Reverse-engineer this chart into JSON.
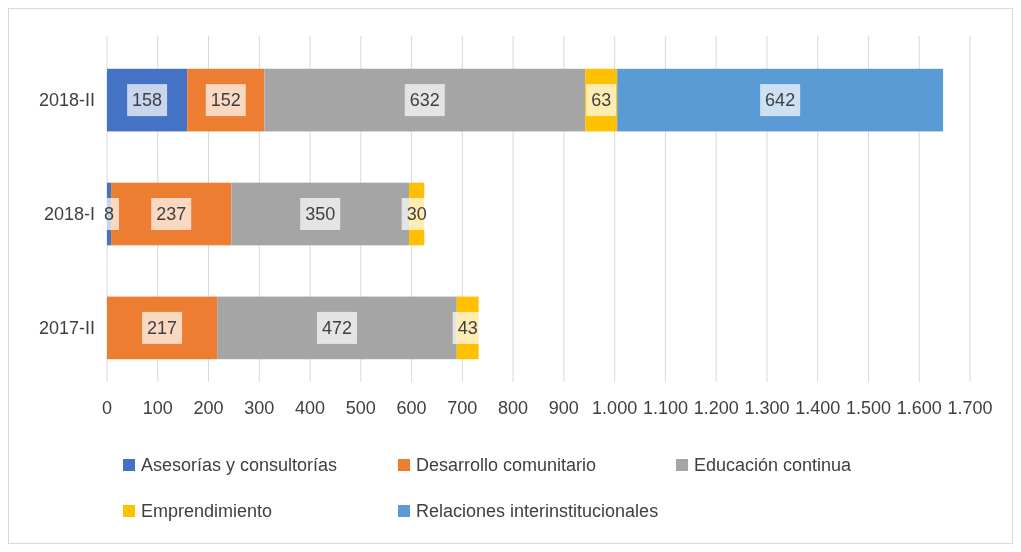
{
  "chart_data": {
    "type": "bar",
    "orientation": "horizontal",
    "stacked": true,
    "data_labels": true,
    "grid": "x",
    "legend": "bottom",
    "categories": [
      "2018-II",
      "2018-I",
      "2017-II"
    ],
    "series": [
      {
        "name": "Asesorías y consultorías",
        "color": "#4472c4",
        "values": [
          158,
          8,
          null
        ]
      },
      {
        "name": "Desarrollo comunitario",
        "color": "#ed7d31",
        "values": [
          152,
          237,
          217
        ]
      },
      {
        "name": "Educación continua",
        "color": "#a5a5a5",
        "values": [
          632,
          350,
          472
        ]
      },
      {
        "name": "Emprendimiento",
        "color": "#ffc000",
        "values": [
          63,
          30,
          43
        ]
      },
      {
        "name": "Relaciones interinstitucionales",
        "color": "#5b9bd5",
        "values": [
          642,
          null,
          null
        ]
      }
    ],
    "xlim": [
      0,
      1700
    ],
    "xticks": [
      0,
      100,
      200,
      300,
      400,
      500,
      600,
      700,
      800,
      900,
      {
        "value": 1000,
        "label": "1.000"
      },
      {
        "value": 1100,
        "label": "1.100"
      },
      {
        "value": 1200,
        "label": "1.200"
      },
      {
        "value": 1300,
        "label": "1.300"
      },
      {
        "value": 1400,
        "label": "1.400"
      },
      {
        "value": 1500,
        "label": "1.500"
      },
      {
        "value": 1600,
        "label": "1.600"
      },
      {
        "value": 1700,
        "label": "1.700"
      }
    ]
  }
}
